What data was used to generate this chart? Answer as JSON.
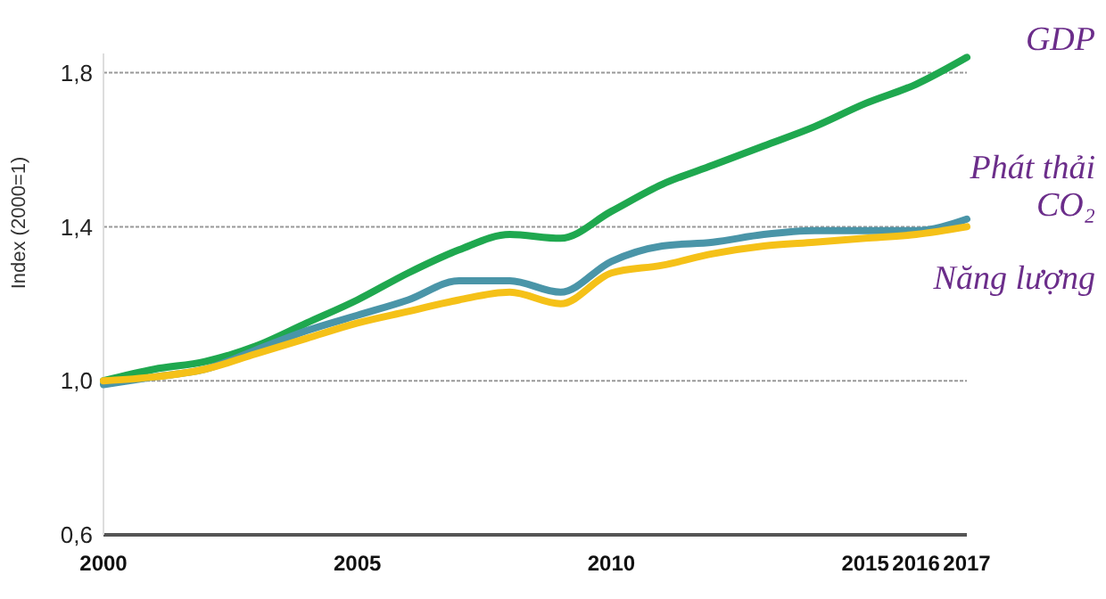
{
  "chart_data": {
    "type": "line",
    "ylabel": "Index (2000=1)",
    "x": [
      2000,
      2001,
      2002,
      2003,
      2004,
      2005,
      2006,
      2007,
      2008,
      2009,
      2010,
      2011,
      2012,
      2013,
      2014,
      2015,
      2016,
      2017
    ],
    "series": [
      {
        "name": "GDP",
        "color": "#1fa84f",
        "values": [
          1.0,
          1.03,
          1.05,
          1.09,
          1.15,
          1.21,
          1.28,
          1.34,
          1.38,
          1.37,
          1.44,
          1.51,
          1.56,
          1.61,
          1.66,
          1.72,
          1.77,
          1.84
        ]
      },
      {
        "name": "Phát thải CO₂",
        "color": "#4a95a8",
        "values": [
          0.99,
          1.01,
          1.03,
          1.08,
          1.13,
          1.17,
          1.21,
          1.26,
          1.26,
          1.23,
          1.31,
          1.35,
          1.36,
          1.38,
          1.39,
          1.39,
          1.39,
          1.42
        ]
      },
      {
        "name": "Năng lượng",
        "color": "#f5c118",
        "values": [
          1.0,
          1.01,
          1.03,
          1.07,
          1.11,
          1.15,
          1.18,
          1.21,
          1.23,
          1.2,
          1.28,
          1.3,
          1.33,
          1.35,
          1.36,
          1.37,
          1.38,
          1.4
        ]
      }
    ],
    "xlim": [
      2000,
      2017
    ],
    "xticks": [
      2000,
      2005,
      2010,
      2015,
      2016,
      2017
    ],
    "ylim": [
      0.6,
      1.85
    ],
    "yticks": [
      {
        "value": 0.6,
        "label": "0,6"
      },
      {
        "value": 1.0,
        "label": "1,0"
      },
      {
        "value": 1.4,
        "label": "1,4"
      },
      {
        "value": 1.8,
        "label": "1,8"
      }
    ],
    "grid": "y",
    "marker": "none",
    "line_style": "solid"
  }
}
